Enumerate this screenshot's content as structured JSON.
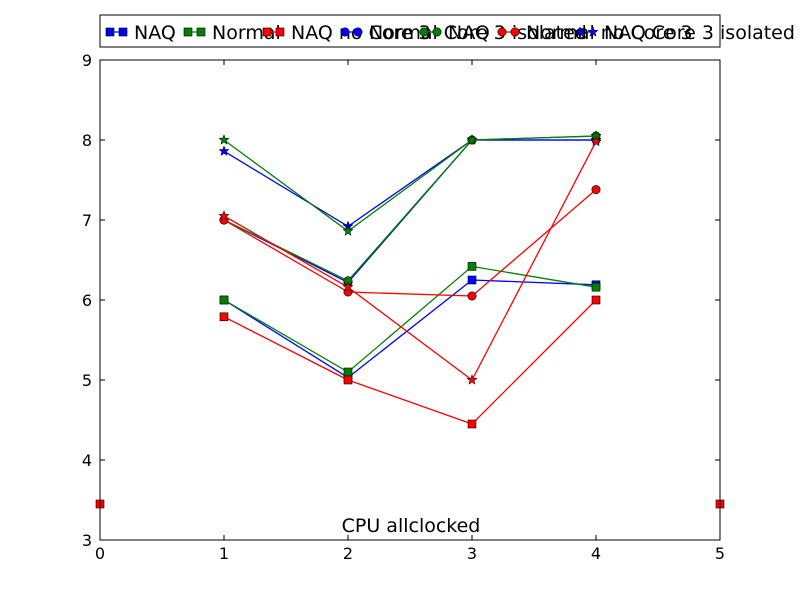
{
  "chart_data": {
    "type": "line",
    "title": "",
    "xlabel": "",
    "ylabel": "",
    "xlim": [
      0,
      5
    ],
    "ylim": [
      3,
      9
    ],
    "xticks": [
      0,
      1,
      2,
      3,
      4,
      5
    ],
    "yticks": [
      3,
      4,
      5,
      6,
      7,
      8,
      9
    ],
    "grid": false,
    "legend": {
      "placement": "top",
      "entries": [
        {
          "label": "NAQ",
          "color": "#0000ff",
          "marker": "square"
        },
        {
          "label": "Normal",
          "color": "#008000",
          "marker": "square"
        },
        {
          "label": "NAQ no Core 3",
          "color": "#ff0000",
          "marker": "square"
        },
        {
          "label": "Normal Core 3 isolated",
          "color": "#0000ff",
          "marker": "circle"
        },
        {
          "label": "NAQ",
          "color": "#008000",
          "marker": "circle"
        },
        {
          "label": "Normal no Core 3",
          "color": "#ff0000",
          "marker": "circle"
        },
        {
          "label": "NAQ Core 3 isolated",
          "color": "#0000ff",
          "marker": "star"
        }
      ]
    },
    "annotation": "CPU allclocked",
    "side_markers": {
      "y": 3.45,
      "x": [
        0,
        5
      ],
      "color": "#ff0000"
    },
    "series": [
      {
        "color": "#0000ff",
        "marker": "square",
        "x": [
          1,
          2,
          3,
          4
        ],
        "y": [
          6.0,
          5.03,
          6.25,
          6.19
        ]
      },
      {
        "color": "#008000",
        "marker": "square",
        "x": [
          1,
          2,
          3,
          4
        ],
        "y": [
          6.0,
          5.1,
          6.42,
          6.16
        ]
      },
      {
        "color": "#ff0000",
        "marker": "square",
        "x": [
          1,
          2,
          3,
          4
        ],
        "y": [
          5.79,
          5.0,
          4.45,
          6.0
        ]
      },
      {
        "color": "#0000ff",
        "marker": "circle",
        "x": [
          1,
          2,
          3,
          4
        ],
        "y": [
          7.0,
          6.22,
          8.0,
          8.0
        ]
      },
      {
        "color": "#008000",
        "marker": "circle",
        "x": [
          1,
          2,
          3,
          4
        ],
        "y": [
          7.0,
          6.24,
          8.0,
          8.05
        ]
      },
      {
        "color": "#ff0000",
        "marker": "circle",
        "x": [
          1,
          2,
          3,
          4
        ],
        "y": [
          7.0,
          6.1,
          6.05,
          7.38
        ]
      },
      {
        "color": "#0000ff",
        "marker": "star",
        "x": [
          1,
          2,
          3,
          4
        ],
        "y": [
          7.86,
          6.92,
          8.0,
          8.0
        ]
      },
      {
        "color": "#008000",
        "marker": "star",
        "x": [
          1,
          2,
          3,
          4
        ],
        "y": [
          8.0,
          6.86,
          8.0,
          8.05
        ]
      },
      {
        "color": "#ff0000",
        "marker": "star",
        "x": [
          1,
          2,
          3,
          4
        ],
        "y": [
          7.05,
          6.16,
          5.0,
          7.98
        ]
      }
    ]
  }
}
